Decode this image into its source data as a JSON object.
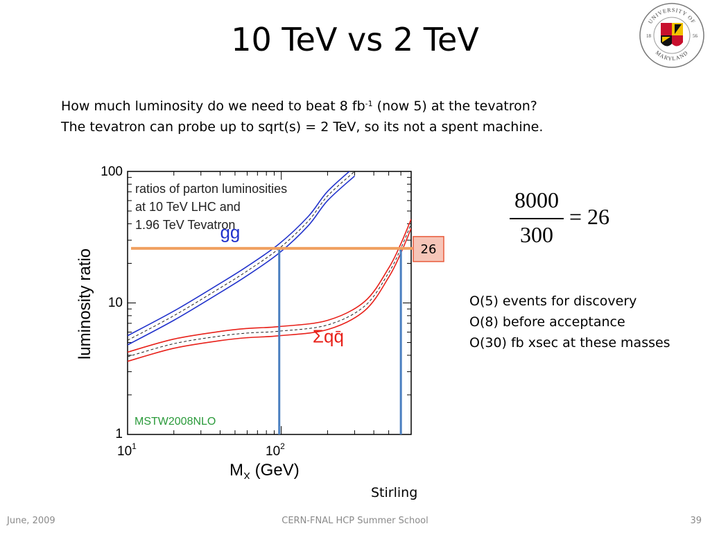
{
  "slide": {
    "title": "10 TeV vs 2 TeV",
    "intro_line1_pre": "How much luminosity do we need to beat 8 fb",
    "intro_line1_sup": "-1",
    "intro_line1_post": " (now 5) at the tevatron?",
    "intro_line2": "The tevatron can probe up to sqrt(s) = 2 TeV, so its not a spent machine.",
    "equation": {
      "numerator": "8000",
      "denominator": "300",
      "rhs": "= 26"
    },
    "notes": [
      "O(5) events for discovery",
      "O(8) before acceptance",
      "O(30) fb xsec at these masses"
    ],
    "credit": "Stirling",
    "logo": {
      "icon": "university-of-maryland-seal",
      "text_top": "UNIVERSITY OF",
      "text_bottom": "MARYLAND",
      "year_left": "18",
      "year_right": "56"
    }
  },
  "footer": {
    "left": "June, 2009",
    "center": "CERN-FNAL HCP Summer School",
    "right": "39"
  },
  "chart_data": {
    "type": "line",
    "ylabel": "luminosity ratio",
    "xlabel": "M",
    "xlabel_sub": "X",
    "xlabel_unit": " (GeV)",
    "xscale": "log",
    "yscale": "log",
    "xlim": [
      10,
      700
    ],
    "ylim": [
      1,
      100
    ],
    "xticks": [
      {
        "base": "10",
        "exp": "1"
      },
      {
        "base": "10",
        "exp": "2"
      }
    ],
    "yticks": [
      "1",
      "10",
      "100"
    ],
    "legend_text": [
      "ratios of parton luminosities",
      "at 10 TeV LHC and",
      "1.96 TeV Tevatron"
    ],
    "pdf_label": "MSTW2008NLO",
    "series": [
      {
        "name": "gg",
        "color": "#2233cc",
        "x": [
          10,
          20,
          40,
          60,
          97,
          150,
          200,
          300
        ],
        "y": [
          5.2,
          8.0,
          13.0,
          17.5,
          26,
          42,
          65,
          100
        ],
        "label_at": [
          40,
          31
        ]
      },
      {
        "name": "Σqq̄",
        "color": "#e8211a",
        "x": [
          10,
          20,
          40,
          60,
          97,
          200,
          350,
          500,
          600,
          700
        ],
        "y": [
          3.9,
          4.9,
          5.6,
          5.9,
          6.1,
          6.8,
          9.5,
          17,
          26,
          40
        ],
        "label_at": [
          160,
          5
        ]
      }
    ],
    "reference_line": {
      "value": 26,
      "label": "26",
      "color": "#f0a060"
    },
    "markers": [
      {
        "x": 97,
        "color": "#4a7fc0"
      },
      {
        "x": 600,
        "color": "#4a7fc0"
      }
    ]
  }
}
